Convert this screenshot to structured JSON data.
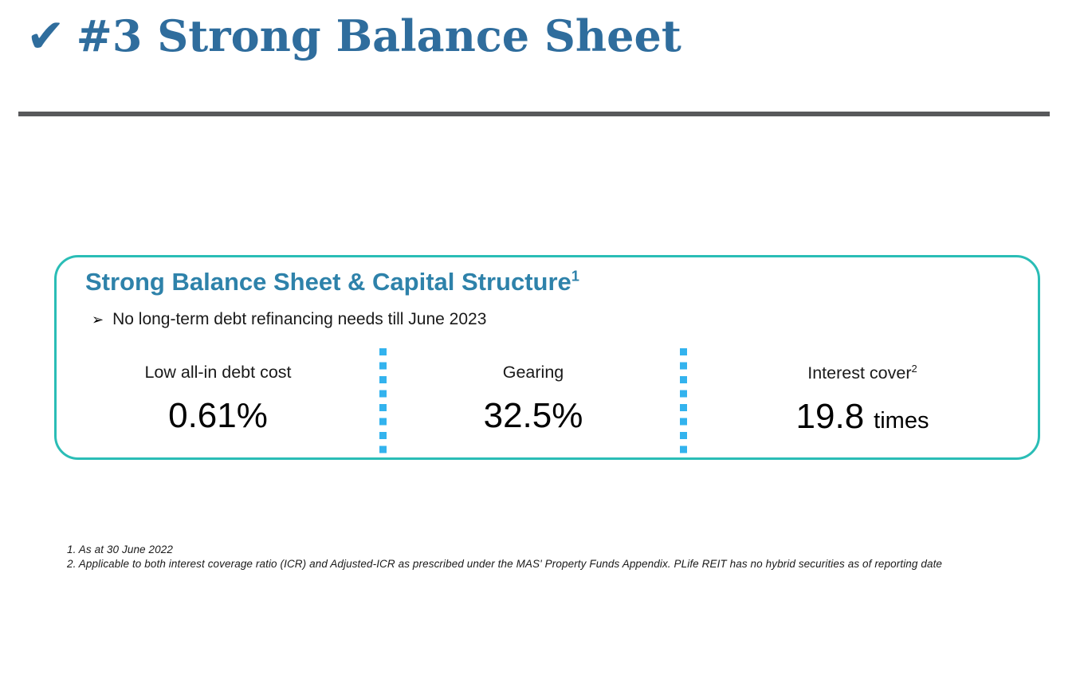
{
  "header": {
    "check_icon": "✔",
    "title": "#3 Strong Balance Sheet"
  },
  "panel": {
    "heading": {
      "text": "Strong Balance Sheet & Capital Structure",
      "sup": "1"
    },
    "bullet": {
      "marker": "➢",
      "text": "No long-term debt refinancing needs till June 2023"
    },
    "stats": [
      {
        "label": "Low all-in debt cost",
        "value": "0.61%"
      },
      {
        "label": "Gearing",
        "value": "32.5%"
      },
      {
        "label": "Interest cover",
        "label_sup": "2",
        "value": "19.8",
        "value_suffix": "times"
      }
    ]
  },
  "footnotes": [
    "1. As at 30 June 2022",
    "2. Applicable to both interest coverage ratio (ICR) and Adjusted-ICR as prescribed under the MAS' Property Funds Appendix. PLife REIT has no hybrid securities as of reporting date"
  ],
  "theme": {
    "title_color": "#2F6D9D",
    "heading_color": "#2E82AA",
    "panel_border_color": "#2ABDB6",
    "dot_color": "#33B3EE",
    "rule_color": "#58595B",
    "text_color": "#1A1A1A"
  }
}
